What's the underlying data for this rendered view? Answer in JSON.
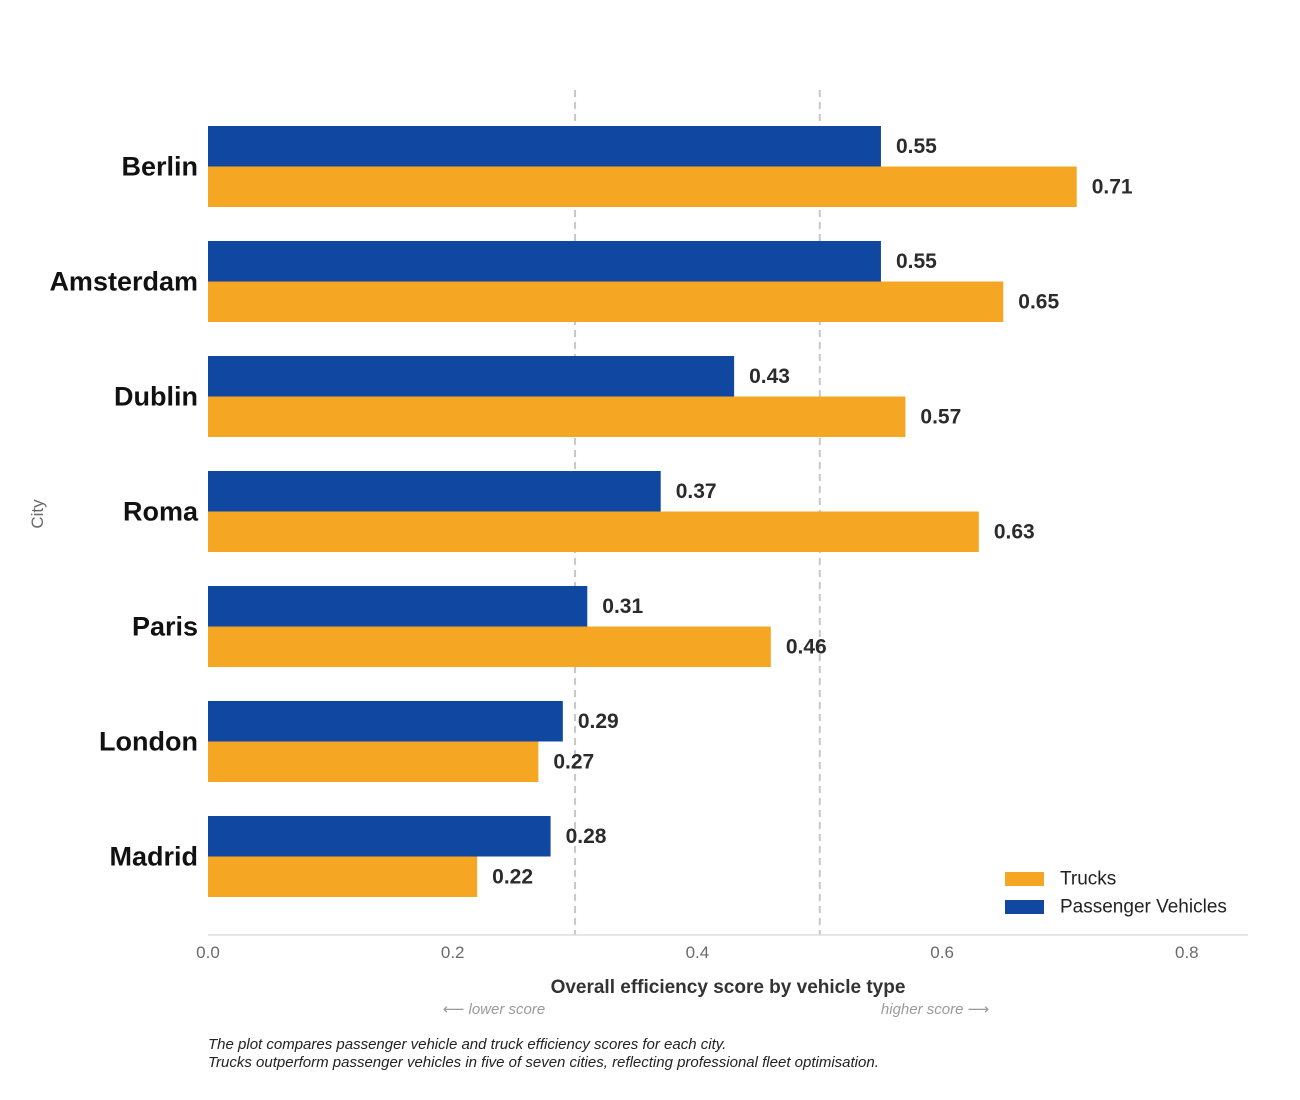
{
  "chart_data": {
    "type": "bar",
    "orientation": "horizontal",
    "categories": [
      "Berlin",
      "Amsterdam",
      "Dublin",
      "Roma",
      "Paris",
      "London",
      "Madrid"
    ],
    "series": [
      {
        "name": "Passenger Vehicles",
        "color": "#0f47a1",
        "values": [
          0.55,
          0.55,
          0.43,
          0.37,
          0.31,
          0.29,
          0.28
        ]
      },
      {
        "name": "Trucks",
        "color": "#f5a623",
        "values": [
          0.71,
          0.65,
          0.57,
          0.63,
          0.46,
          0.27,
          0.22
        ]
      }
    ],
    "legend_order": [
      "Trucks",
      "Passenger Vehicles"
    ],
    "legend_position": "bottom-right",
    "xlabel": "Overall efficiency score by vehicle type",
    "ylabel": "City",
    "xlim": [
      0,
      0.85
    ],
    "xticks": [
      0.0,
      0.2,
      0.4,
      0.6,
      0.8
    ],
    "xtick_labels": [
      "0.0",
      "0.2",
      "0.4",
      "0.6",
      "0.8"
    ],
    "reference_lines": [
      0.3,
      0.5
    ],
    "direction_labels": {
      "low": "⟵ lower score",
      "high": "higher score ⟶"
    },
    "value_format_decimals": 2
  },
  "caption": {
    "line1": "The plot compares passenger vehicle and truck efficiency scores for each city.",
    "line2": "Trucks outperform passenger vehicles in five of seven cities, reflecting professional fleet optimisation."
  }
}
